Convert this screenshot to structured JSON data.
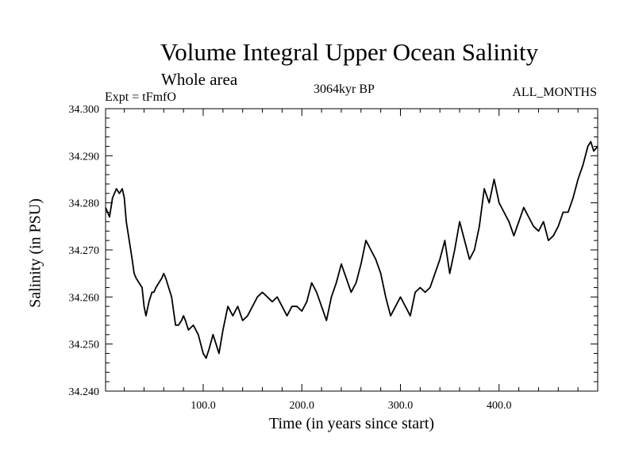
{
  "chart_data": {
    "type": "line",
    "title": "Volume Integral Upper Ocean Salinity",
    "subtitle": "Whole area",
    "experiment_label": "Expt = tFmfO",
    "period_label": "3064kyr BP",
    "months_label": "ALL_MONTHS",
    "xlabel": "Time (in years since start)",
    "ylabel": "Salinity (in PSU)",
    "xlim": [
      1,
      500
    ],
    "ylim": [
      34.24,
      34.3
    ],
    "x_ticks": [
      100,
      200,
      300,
      400
    ],
    "x_tick_labels": [
      "100.0",
      "200.0",
      "300.0",
      "400.0"
    ],
    "y_ticks": [
      34.24,
      34.25,
      34.26,
      34.27,
      34.28,
      34.29,
      34.3
    ],
    "y_tick_labels": [
      "34.240",
      "34.250",
      "34.260",
      "34.270",
      "34.280",
      "34.290",
      "34.300"
    ],
    "grid": false,
    "series": [
      {
        "name": "salinity",
        "x": [
          1,
          5,
          8,
          12,
          15,
          18,
          20,
          22,
          25,
          28,
          30,
          32,
          35,
          38,
          40,
          42,
          45,
          48,
          50,
          52,
          55,
          58,
          60,
          62,
          65,
          68,
          70,
          72,
          75,
          78,
          80,
          82,
          85,
          90,
          95,
          100,
          103,
          106,
          110,
          113,
          116,
          120,
          125,
          130,
          135,
          140,
          145,
          150,
          155,
          160,
          165,
          170,
          175,
          180,
          185,
          190,
          195,
          200,
          205,
          210,
          215,
          220,
          225,
          230,
          235,
          240,
          245,
          250,
          255,
          260,
          265,
          270,
          275,
          280,
          285,
          290,
          295,
          300,
          305,
          310,
          315,
          320,
          325,
          330,
          335,
          340,
          345,
          350,
          355,
          360,
          365,
          370,
          375,
          380,
          385,
          390,
          395,
          400,
          405,
          410,
          415,
          420,
          425,
          430,
          435,
          440,
          445,
          450,
          455,
          460,
          465,
          470,
          475,
          480,
          485,
          490,
          493,
          496,
          500
        ],
        "values": [
          34.279,
          34.277,
          34.281,
          34.283,
          34.282,
          34.283,
          34.281,
          34.276,
          34.272,
          34.268,
          34.265,
          34.264,
          34.263,
          34.262,
          34.258,
          34.256,
          34.259,
          34.261,
          34.261,
          34.262,
          34.263,
          34.264,
          34.265,
          34.264,
          34.262,
          34.26,
          34.257,
          34.254,
          34.254,
          34.255,
          34.256,
          34.255,
          34.253,
          34.254,
          34.252,
          34.248,
          34.247,
          34.249,
          34.252,
          34.25,
          34.248,
          34.253,
          34.258,
          34.256,
          34.258,
          34.255,
          34.256,
          34.258,
          34.26,
          34.261,
          34.26,
          34.259,
          34.26,
          34.258,
          34.256,
          34.258,
          34.258,
          34.257,
          34.259,
          34.263,
          34.261,
          34.258,
          34.255,
          34.26,
          34.263,
          34.267,
          34.264,
          34.261,
          34.263,
          34.267,
          34.272,
          34.27,
          34.268,
          34.265,
          34.26,
          34.256,
          34.258,
          34.26,
          34.258,
          34.256,
          34.261,
          34.262,
          34.261,
          34.262,
          34.265,
          34.268,
          34.272,
          34.265,
          34.27,
          34.276,
          34.272,
          34.268,
          34.27,
          34.275,
          34.283,
          34.28,
          34.285,
          34.28,
          34.278,
          34.276,
          34.273,
          34.276,
          34.279,
          34.277,
          34.275,
          34.274,
          34.276,
          34.272,
          34.273,
          34.275,
          34.278,
          34.278,
          34.281,
          34.285,
          34.288,
          34.292,
          34.293,
          34.291,
          34.292
        ]
      }
    ]
  }
}
